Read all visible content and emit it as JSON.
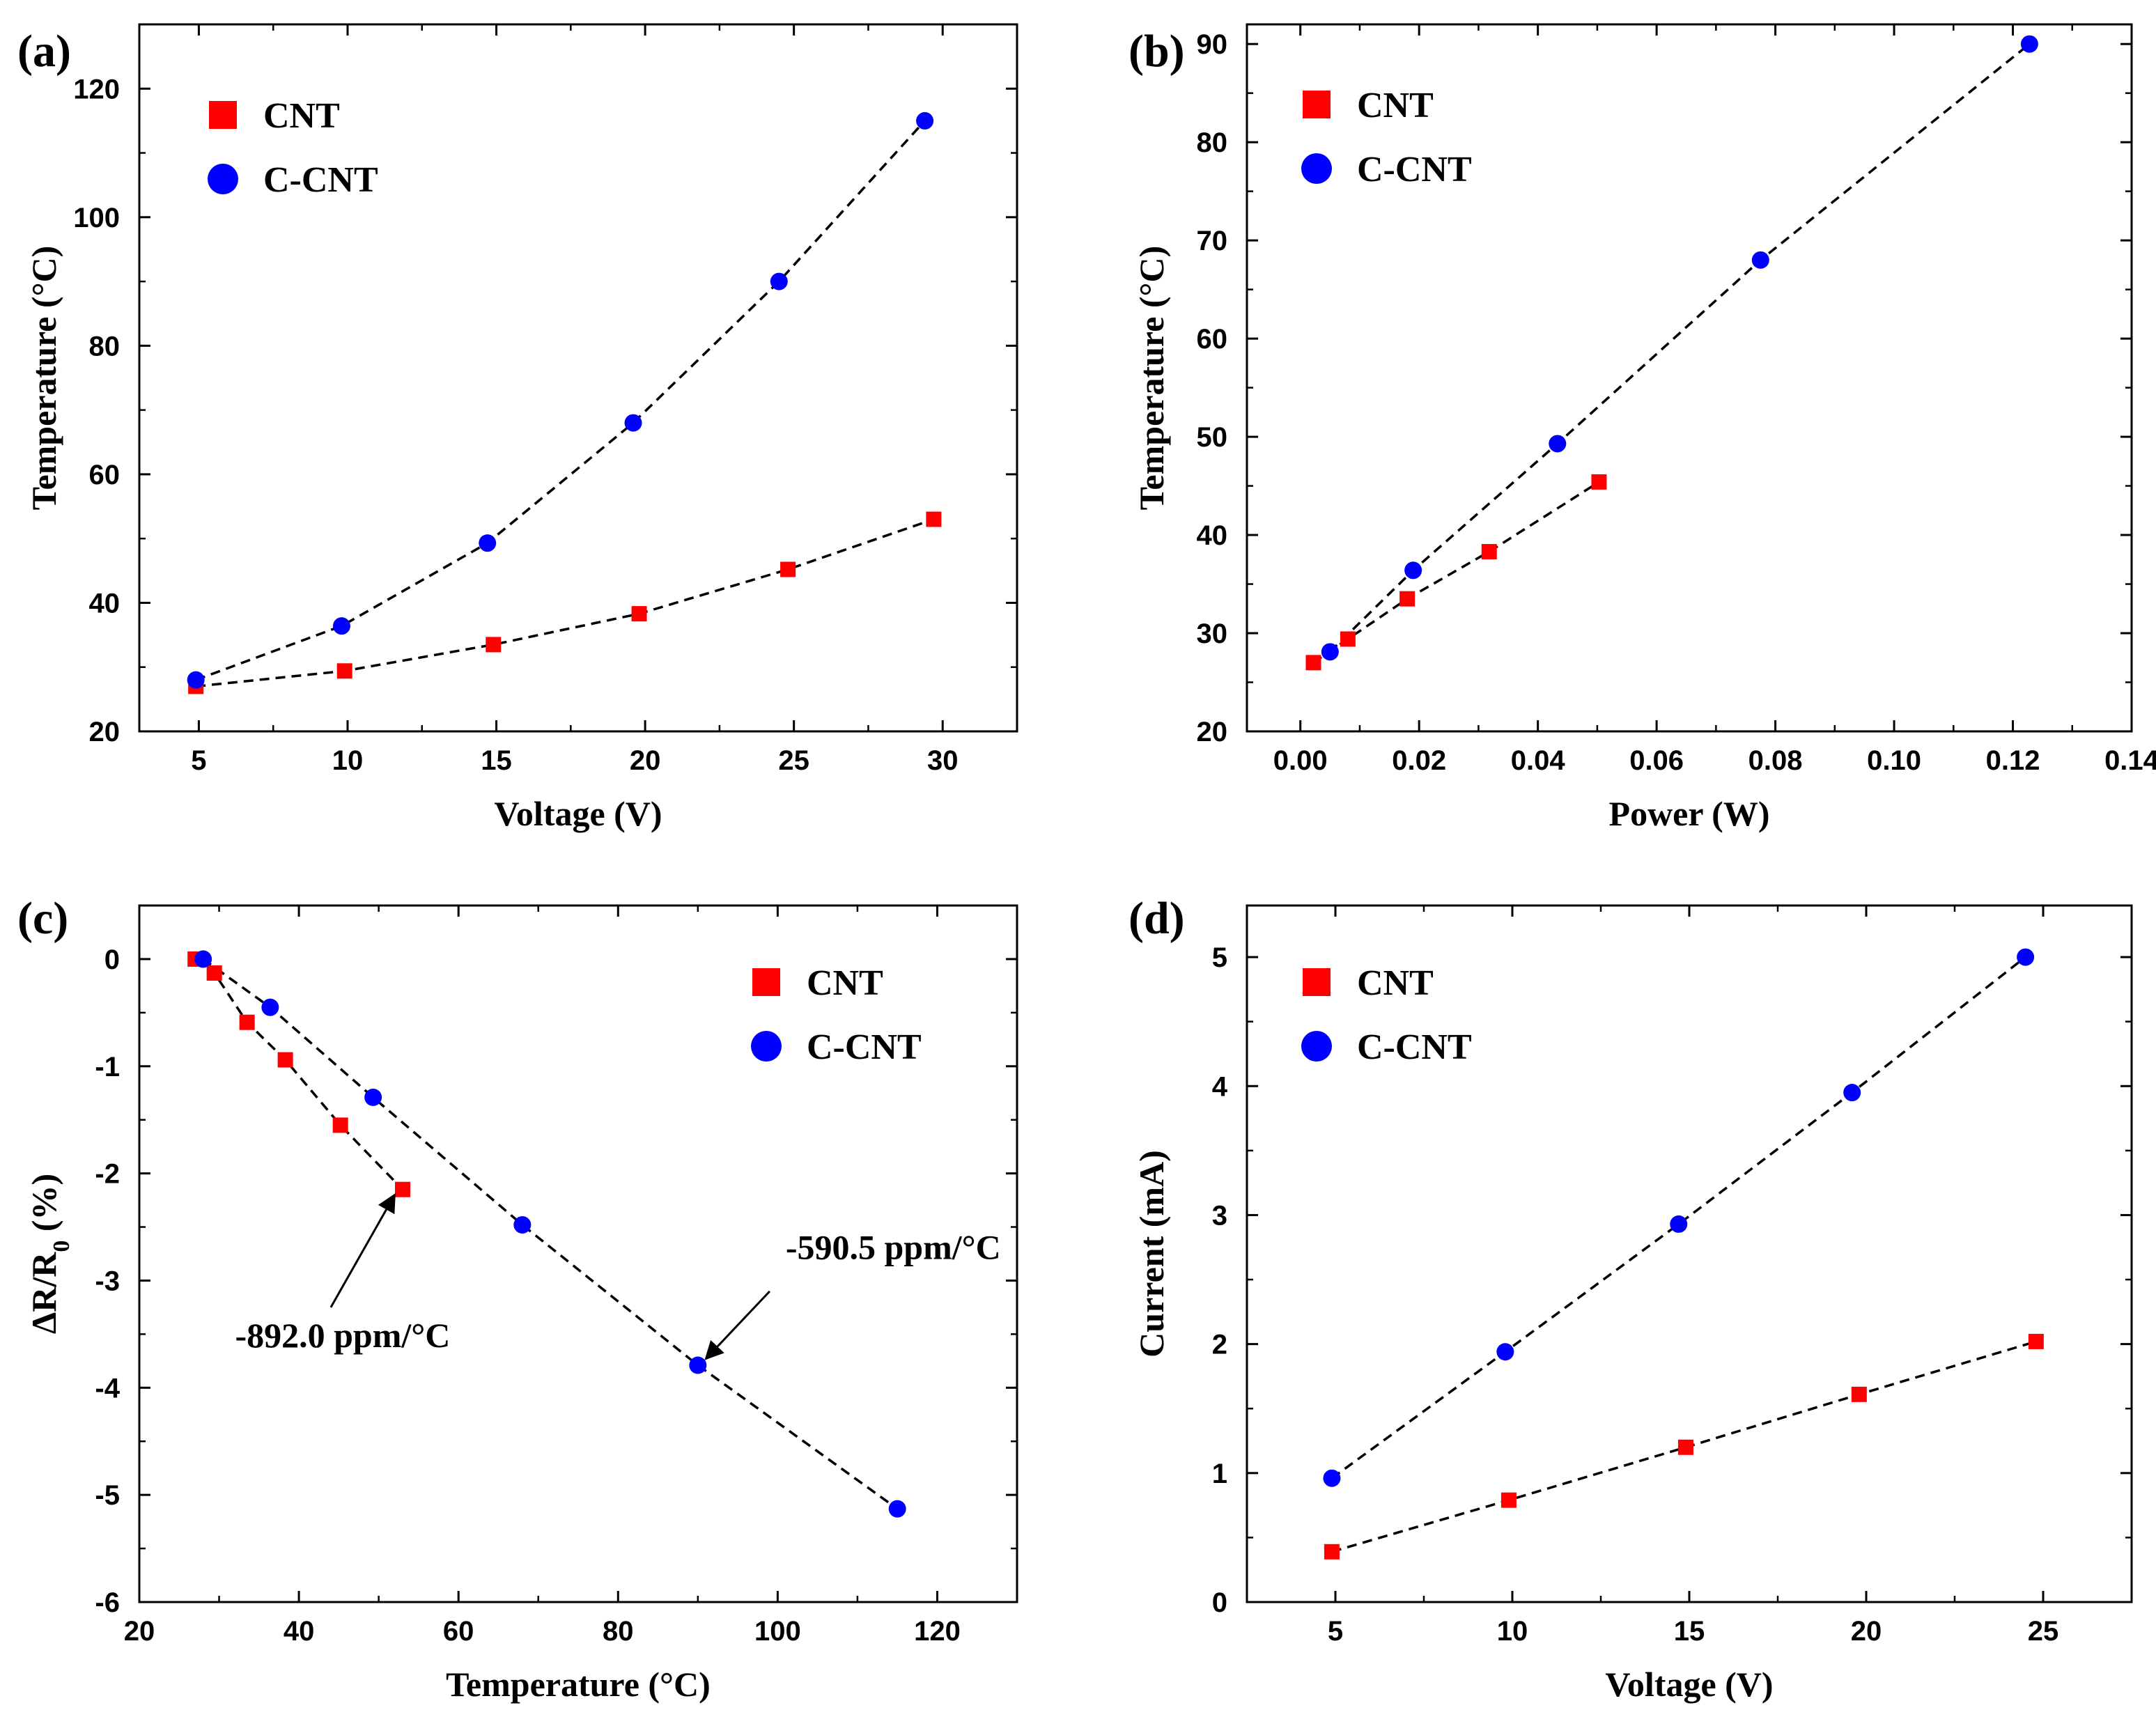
{
  "colors": {
    "CNT": "#ff0000",
    "C-CNT": "#0000ff",
    "fit": "#000000"
  },
  "chart_data": [
    {
      "panel": "(a)",
      "type": "scatter",
      "xlabel": "Voltage (V)",
      "ylabel": "Temperature (°C)",
      "xlim": [
        3,
        32.5
      ],
      "ylim": [
        20,
        130
      ],
      "xticks": [
        5,
        10,
        15,
        20,
        25,
        30
      ],
      "yticks": [
        20,
        40,
        60,
        80,
        100,
        120
      ],
      "legend_position": "top-left",
      "series": [
        {
          "name": "CNT",
          "marker": "square",
          "x": [
            4.9,
            9.9,
            14.9,
            19.8,
            24.8,
            29.7
          ],
          "y": [
            27,
            29.4,
            33.5,
            38.3,
            45.2,
            53
          ]
        },
        {
          "name": "C-CNT",
          "marker": "circle",
          "x": [
            4.9,
            9.8,
            14.7,
            19.6,
            24.5,
            29.4
          ],
          "y": [
            28,
            36.4,
            49.3,
            68,
            90,
            115
          ]
        }
      ],
      "annotations": []
    },
    {
      "panel": "(b)",
      "type": "scatter",
      "xlabel": "Power (W)",
      "ylabel": "Temperature (°C)",
      "xlim": [
        -0.009,
        0.14
      ],
      "ylim": [
        20,
        92
      ],
      "xticks": [
        0.0,
        0.02,
        0.04,
        0.06,
        0.08,
        0.1,
        0.12,
        0.14
      ],
      "xtick_labels": [
        "0.00",
        "0.02",
        "0.04",
        "0.06",
        "0.08",
        "0.10",
        "0.12",
        "0.14"
      ],
      "yticks": [
        20,
        30,
        40,
        50,
        60,
        70,
        80,
        90
      ],
      "legend_position": "top-left",
      "series": [
        {
          "name": "CNT",
          "marker": "square",
          "x": [
            0.0022,
            0.008,
            0.018,
            0.0318,
            0.0503
          ],
          "y": [
            27,
            29.4,
            33.5,
            38.3,
            45.4
          ]
        },
        {
          "name": "C-CNT",
          "marker": "circle",
          "x": [
            0.005,
            0.019,
            0.0433,
            0.0775,
            0.1228
          ],
          "y": [
            28.1,
            36.4,
            49.3,
            68,
            90
          ]
        }
      ],
      "annotations": []
    },
    {
      "panel": "(c)",
      "type": "scatter",
      "xlabel": "Temperature (°C)",
      "ylabel": "ΔR/R",
      "ylabel_sub": "0",
      "ylabel_suffix": " (%)",
      "xlim": [
        20,
        130
      ],
      "ylim": [
        -6,
        0.5
      ],
      "xticks": [
        20,
        40,
        60,
        80,
        100,
        120
      ],
      "yticks": [
        0,
        -1,
        -2,
        -3,
        -4,
        -5,
        -6
      ],
      "legend_position": "top-right",
      "series": [
        {
          "name": "CNT",
          "marker": "square",
          "x": [
            27,
            29.4,
            33.5,
            38.3,
            45.2,
            53
          ],
          "y": [
            0,
            -0.13,
            -0.59,
            -0.94,
            -1.55,
            -2.15
          ]
        },
        {
          "name": "C-CNT",
          "marker": "circle",
          "x": [
            28,
            36.4,
            49.3,
            68,
            90,
            115
          ],
          "y": [
            0,
            -0.45,
            -1.29,
            -2.48,
            -3.79,
            -5.13
          ]
        }
      ],
      "annotations": [
        {
          "text": "-892.0 ppm/°C",
          "point": [
            52,
            -2.2
          ],
          "text_at": [
            32,
            -3.62
          ],
          "tail_at": [
            44,
            -3.25
          ]
        },
        {
          "text": "-590.5 ppm/°C",
          "point": [
            91,
            -3.73
          ],
          "text_at": [
            101,
            -2.8
          ],
          "tail_at": [
            99,
            -3.1
          ]
        }
      ]
    },
    {
      "panel": "(d)",
      "type": "scatter",
      "xlabel": "Voltage (V)",
      "ylabel": "Current (mA)",
      "xlim": [
        2.5,
        27.5
      ],
      "ylim": [
        0,
        5.4
      ],
      "xticks": [
        5,
        10,
        15,
        20,
        25
      ],
      "yticks": [
        0,
        1,
        2,
        3,
        4,
        5
      ],
      "legend_position": "top-left",
      "series": [
        {
          "name": "CNT",
          "marker": "square",
          "x": [
            4.9,
            9.9,
            14.9,
            19.8,
            24.8
          ],
          "y": [
            0.39,
            0.79,
            1.2,
            1.61,
            2.02
          ]
        },
        {
          "name": "C-CNT",
          "marker": "circle",
          "x": [
            4.9,
            9.8,
            14.7,
            19.6,
            24.5
          ],
          "y": [
            0.96,
            1.94,
            2.93,
            3.95,
            5.0
          ]
        }
      ],
      "annotations": []
    }
  ]
}
